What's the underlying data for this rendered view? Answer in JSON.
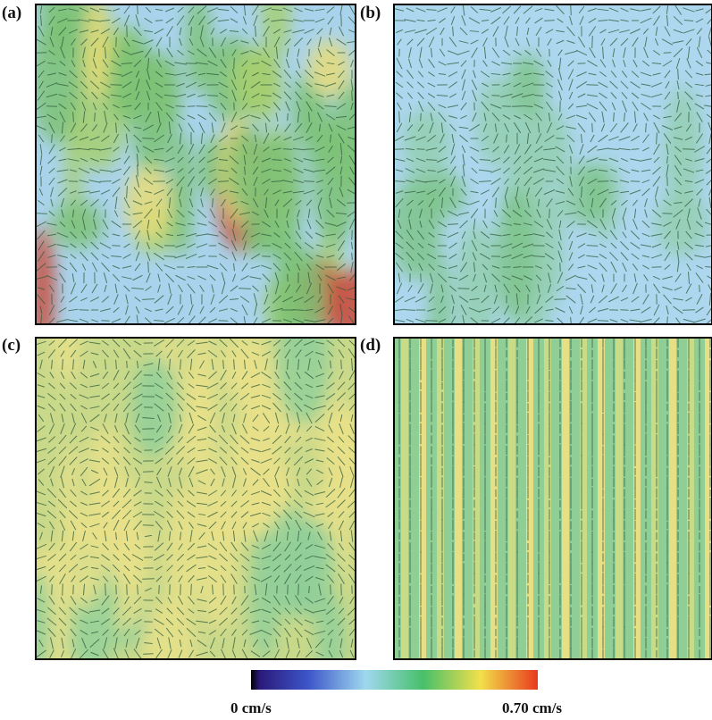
{
  "panels": [
    {
      "label": "(a)"
    },
    {
      "label": "(b)"
    },
    {
      "label": "(c)"
    },
    {
      "label": "(d)"
    }
  ],
  "colorbar": {
    "min_label": "0 cm/s",
    "max_label": "0.70 cm/s"
  }
}
